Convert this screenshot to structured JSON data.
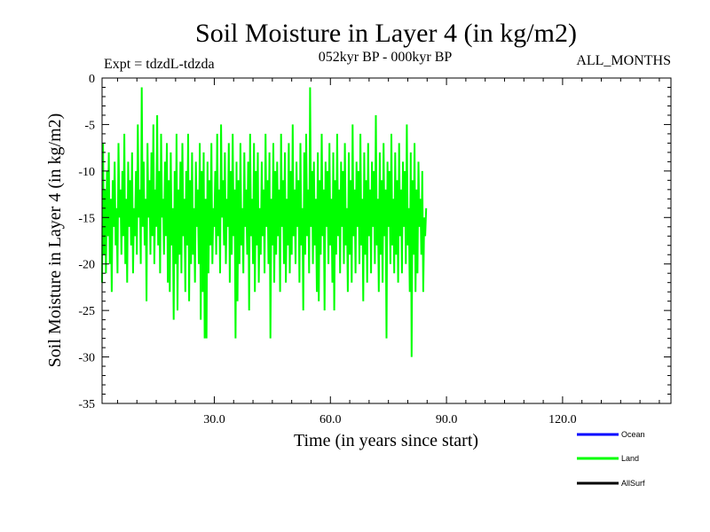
{
  "chart_data": {
    "type": "line",
    "title": "Soil Moisture in Layer 4 (in kg/m2)",
    "subtitle_left": "Expt = tdzdL-tdzda",
    "subtitle_center": "052kyr BP - 000kyr BP",
    "subtitle_right": "ALL_MONTHS",
    "xlabel": "Time (in years since start)",
    "ylabel": "Soil Moisture in Layer 4 (in kg/m2)",
    "xlim": [
      1,
      148
    ],
    "ylim": [
      -35,
      0
    ],
    "x_ticks": [
      30,
      60,
      90,
      120
    ],
    "x_tick_labels": [
      "30.0",
      "60.0",
      "90.0",
      "120.0"
    ],
    "y_ticks": [
      0,
      -5,
      -10,
      -15,
      -20,
      -25,
      -30,
      -35
    ],
    "y_tick_labels": [
      "0",
      "-5",
      "-10",
      "-15",
      "-20",
      "-25",
      "-30",
      "-35"
    ],
    "legend": [
      {
        "name": "Ocean",
        "color": "#0000ff"
      },
      {
        "name": "Land",
        "color": "#00ff00"
      },
      {
        "name": "AllSurf",
        "color": "#000000"
      }
    ],
    "legend_position": "bottom-right",
    "series": [
      {
        "name": "Land",
        "color": "#00ff00",
        "x_start": 1,
        "x_step": 0.25,
        "values": [
          -22,
          -7,
          -19,
          -12,
          -21,
          -10,
          -17,
          -8,
          -20,
          -13,
          -23,
          -11,
          -16,
          -9,
          -18,
          -14,
          -21,
          -7,
          -15,
          -12,
          -19,
          -10,
          -17,
          -6,
          -20,
          -13,
          -22,
          -9,
          -16,
          -11,
          -18,
          -8,
          -21,
          -14,
          -17,
          -10,
          -19,
          -5,
          -15,
          -12,
          -20,
          -1,
          -16,
          -9,
          -18,
          -13,
          -24,
          -7,
          -15,
          -11,
          -19,
          -8,
          -17,
          -5,
          -20,
          -12,
          -16,
          -4,
          -18,
          -10,
          -21,
          -6,
          -15,
          -13,
          -19,
          -9,
          -17,
          -7,
          -22,
          -11,
          -23,
          -8,
          -18,
          -14,
          -26,
          -10,
          -20,
          -6,
          -25,
          -12,
          -19,
          -9,
          -21,
          -7,
          -17,
          -13,
          -23,
          -10,
          -18,
          -6,
          -24,
          -11,
          -20,
          -8,
          -19,
          -14,
          -22,
          -9,
          -16,
          -12,
          -20,
          -7,
          -26,
          -10,
          -23,
          -8,
          -28,
          -13,
          -28,
          -9,
          -21,
          -11,
          -18,
          -7,
          -20,
          -14,
          -16,
          -10,
          -19,
          -6,
          -17,
          -12,
          -21,
          -5,
          -15,
          -11,
          -18,
          -8,
          -20,
          -13,
          -16,
          -7,
          -22,
          -10,
          -19,
          -6,
          -17,
          -12,
          -28,
          -9,
          -24,
          -11,
          -20,
          -7,
          -18,
          -14,
          -21,
          -8,
          -16,
          -12,
          -19,
          -9,
          -25,
          -6,
          -17,
          -13,
          -20,
          -7,
          -23,
          -10,
          -18,
          -8,
          -22,
          -14,
          -19,
          -9,
          -17,
          -12,
          -21,
          -6,
          -16,
          -11,
          -20,
          -8,
          -28,
          -13,
          -18,
          -7,
          -22,
          -10,
          -19,
          -9,
          -17,
          -12,
          -23,
          -6,
          -16,
          -11,
          -20,
          -8,
          -22,
          -13,
          -18,
          -7,
          -21,
          -10,
          -19,
          -5,
          -17,
          -12,
          -20,
          -9,
          -16,
          -11,
          -22,
          -7,
          -18,
          -14,
          -25,
          -8,
          -19,
          -6,
          -17,
          -12,
          -21,
          -1,
          -16,
          -10,
          -20,
          -9,
          -18,
          -13,
          -23,
          -8,
          -24,
          -11,
          -19,
          -6,
          -17,
          -12,
          -25,
          -9,
          -16,
          -10,
          -20,
          -7,
          -18,
          -13,
          -22,
          -8,
          -25,
          -11,
          -19,
          -6,
          -17,
          -12,
          -21,
          -9,
          -16,
          -10,
          -20,
          -7,
          -18,
          -14,
          -23,
          -8,
          -19,
          -11,
          -22,
          -5,
          -17,
          -12,
          -21,
          -9,
          -16,
          -10,
          -20,
          -6,
          -18,
          -13,
          -24,
          -8,
          -19,
          -11,
          -22,
          -7,
          -17,
          -12,
          -21,
          -9,
          -16,
          -10,
          -20,
          -4,
          -18,
          -13,
          -23,
          -8,
          -19,
          -11,
          -22,
          -7,
          -17,
          -12,
          -28,
          -9,
          -16,
          -10,
          -20,
          -6,
          -18,
          -13,
          -21,
          -8,
          -19,
          -11,
          -22,
          -7,
          -17,
          -12,
          -21,
          -9,
          -16,
          -10,
          -20,
          -5,
          -18,
          -14,
          -23,
          -8,
          -30,
          -11,
          -19,
          -7,
          -23,
          -12,
          -21,
          -9,
          -16,
          -13,
          -19,
          -10,
          -23,
          -15,
          -17,
          -14
        ]
      }
    ]
  }
}
